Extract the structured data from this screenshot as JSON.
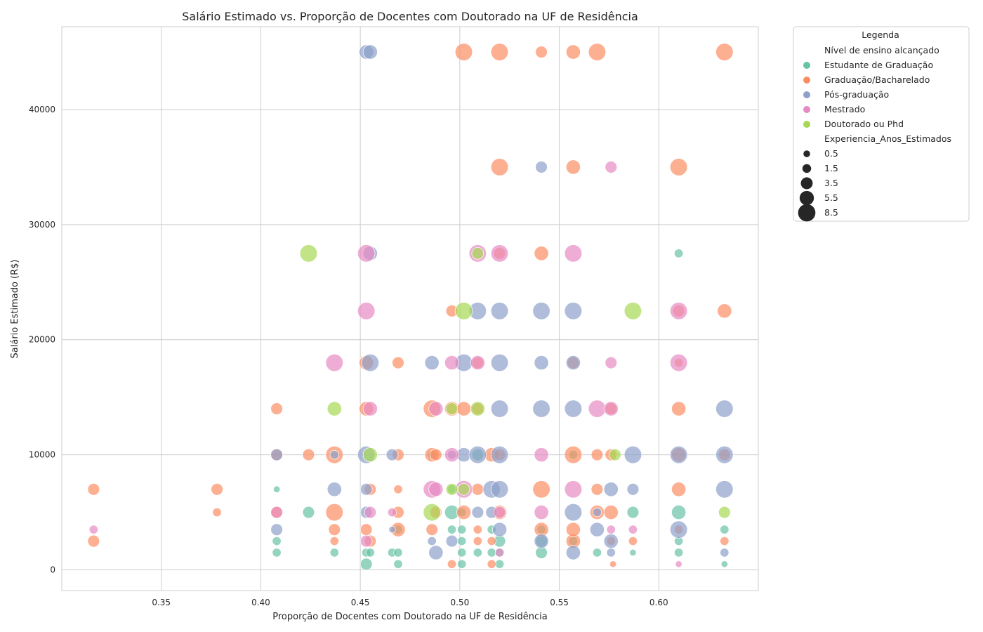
{
  "chart_data": {
    "type": "scatter",
    "title": "Salário Estimado vs. Proporção de Docentes com Doutorado na UF de Residência",
    "xlabel": "Proporção de Docentes com Doutorado na UF de Residência",
    "ylabel": "Salário Estimado (R$)",
    "xlim": [
      0.3,
      0.65
    ],
    "ylim": [
      -1800,
      47200
    ],
    "xticks": [
      0.35,
      0.4,
      0.45,
      0.5,
      0.55,
      0.6
    ],
    "xtick_labels": [
      "0.35",
      "0.40",
      "0.45",
      "0.50",
      "0.55",
      "0.60"
    ],
    "yticks": [
      0,
      10000,
      20000,
      30000,
      40000
    ],
    "ytick_labels": [
      "0",
      "10000",
      "20000",
      "30000",
      "40000"
    ],
    "grid": true,
    "legend": {
      "title": "Legenda",
      "placement": "outside-top-right",
      "hue_title": "Nível de ensino alcançado",
      "size_title": "Experiencia_Anos_Estimados",
      "hue_entries": [
        {
          "label": "Estudante de Graduação",
          "color": "#66c2a5"
        },
        {
          "label": "Graduação/Bacharelado",
          "color": "#fc8d62"
        },
        {
          "label": "Pós-graduação",
          "color": "#8da0cb"
        },
        {
          "label": "Mestrado",
          "color": "#e78ac3"
        },
        {
          "label": "Doutorado ou Phd",
          "color": "#a6d854"
        }
      ],
      "size_entries": [
        {
          "label": "0.5",
          "value": 0.5
        },
        {
          "label": "1.5",
          "value": 1.5
        },
        {
          "label": "3.5",
          "value": 3.5
        },
        {
          "label": "5.5",
          "value": 5.5
        },
        {
          "label": "8.5",
          "value": 8.5
        }
      ]
    },
    "series": [
      {
        "name": "Estudante de Graduação",
        "color": "#66c2a5",
        "points": [
          [
            0.408,
            1500,
            1.5
          ],
          [
            0.408,
            2500,
            1.5
          ],
          [
            0.408,
            7000,
            0.5
          ],
          [
            0.424,
            5000,
            3.5
          ],
          [
            0.437,
            1500,
            1.5
          ],
          [
            0.453,
            500,
            3.5
          ],
          [
            0.453,
            1500,
            1.5
          ],
          [
            0.455,
            1500,
            1.5
          ],
          [
            0.466,
            1500,
            1.5
          ],
          [
            0.469,
            500,
            1.5
          ],
          [
            0.469,
            1500,
            1.5
          ],
          [
            0.469,
            3500,
            1.5
          ],
          [
            0.486,
            10000,
            1.5
          ],
          [
            0.496,
            3500,
            1.5
          ],
          [
            0.496,
            5000,
            5.5
          ],
          [
            0.496,
            7000,
            1.5
          ],
          [
            0.501,
            500,
            1.5
          ],
          [
            0.501,
            1500,
            1.5
          ],
          [
            0.501,
            2500,
            1.5
          ],
          [
            0.501,
            3500,
            1.5
          ],
          [
            0.501,
            5000,
            1.5
          ],
          [
            0.509,
            1500,
            1.5
          ],
          [
            0.509,
            10000,
            3.5
          ],
          [
            0.516,
            1500,
            1.5
          ],
          [
            0.516,
            3500,
            1.5
          ],
          [
            0.52,
            500,
            1.5
          ],
          [
            0.52,
            1500,
            1.5
          ],
          [
            0.52,
            2500,
            3.5
          ],
          [
            0.541,
            1500,
            3.5
          ],
          [
            0.541,
            2500,
            3.5
          ],
          [
            0.541,
            3500,
            1.5
          ],
          [
            0.557,
            2500,
            1.5
          ],
          [
            0.557,
            10000,
            1.5
          ],
          [
            0.569,
            1500,
            1.5
          ],
          [
            0.587,
            1500,
            0.5
          ],
          [
            0.587,
            5000,
            3.5
          ],
          [
            0.61,
            1500,
            1.5
          ],
          [
            0.61,
            2500,
            1.5
          ],
          [
            0.61,
            5000,
            5.5
          ],
          [
            0.61,
            27500,
            1.5
          ],
          [
            0.633,
            3500,
            1.5
          ],
          [
            0.633,
            500,
            0.5
          ]
        ]
      },
      {
        "name": "Graduação/Bacharelado",
        "color": "#fc8d62",
        "points": [
          [
            0.316,
            2500,
            3.5
          ],
          [
            0.316,
            7000,
            3.5
          ],
          [
            0.378,
            5000,
            1.5
          ],
          [
            0.378,
            7000,
            3.5
          ],
          [
            0.408,
            5000,
            3.5
          ],
          [
            0.408,
            10000,
            3.5
          ],
          [
            0.408,
            14000,
            3.5
          ],
          [
            0.424,
            10000,
            3.5
          ],
          [
            0.437,
            2500,
            1.5
          ],
          [
            0.437,
            3500,
            3.5
          ],
          [
            0.437,
            5000,
            8.5
          ],
          [
            0.437,
            10000,
            8.5
          ],
          [
            0.453,
            3500,
            3.5
          ],
          [
            0.453,
            14000,
            5.5
          ],
          [
            0.453,
            18000,
            5.5
          ],
          [
            0.455,
            2500,
            3.5
          ],
          [
            0.455,
            7000,
            3.5
          ],
          [
            0.469,
            5000,
            3.5
          ],
          [
            0.469,
            7000,
            1.5
          ],
          [
            0.469,
            10000,
            3.5
          ],
          [
            0.469,
            18000,
            3.5
          ],
          [
            0.469,
            3500,
            5.5
          ],
          [
            0.486,
            3500,
            3.5
          ],
          [
            0.486,
            10000,
            5.5
          ],
          [
            0.486,
            14000,
            8.5
          ],
          [
            0.488,
            5000,
            3.5
          ],
          [
            0.488,
            10000,
            3.5
          ],
          [
            0.496,
            500,
            1.5
          ],
          [
            0.496,
            14000,
            5.5
          ],
          [
            0.496,
            22500,
            3.5
          ],
          [
            0.502,
            45000,
            8.5
          ],
          [
            0.502,
            5000,
            5.5
          ],
          [
            0.502,
            14000,
            5.5
          ],
          [
            0.509,
            2500,
            1.5
          ],
          [
            0.509,
            3500,
            1.5
          ],
          [
            0.509,
            7000,
            3.5
          ],
          [
            0.509,
            14000,
            3.5
          ],
          [
            0.509,
            18000,
            3.5
          ],
          [
            0.516,
            500,
            1.5
          ],
          [
            0.516,
            2500,
            1.5
          ],
          [
            0.516,
            10000,
            5.5
          ],
          [
            0.52,
            5000,
            5.5
          ],
          [
            0.52,
            10000,
            3.5
          ],
          [
            0.52,
            27500,
            3.5
          ],
          [
            0.52,
            35000,
            8.5
          ],
          [
            0.52,
            45000,
            8.5
          ],
          [
            0.541,
            3500,
            5.5
          ],
          [
            0.541,
            7000,
            8.5
          ],
          [
            0.541,
            27500,
            5.5
          ],
          [
            0.541,
            45000,
            3.5
          ],
          [
            0.557,
            2500,
            5.5
          ],
          [
            0.557,
            3500,
            5.5
          ],
          [
            0.557,
            10000,
            8.5
          ],
          [
            0.557,
            18000,
            3.5
          ],
          [
            0.557,
            35000,
            5.5
          ],
          [
            0.557,
            45000,
            5.5
          ],
          [
            0.569,
            5000,
            5.5
          ],
          [
            0.569,
            7000,
            3.5
          ],
          [
            0.569,
            10000,
            3.5
          ],
          [
            0.569,
            45000,
            8.5
          ],
          [
            0.576,
            2500,
            1.5
          ],
          [
            0.576,
            5000,
            5.5
          ],
          [
            0.576,
            10000,
            3.5
          ],
          [
            0.576,
            14000,
            3.5
          ],
          [
            0.577,
            500,
            0.5
          ],
          [
            0.587,
            2500,
            1.5
          ],
          [
            0.61,
            3500,
            1.5
          ],
          [
            0.61,
            7000,
            5.5
          ],
          [
            0.61,
            10000,
            5.5
          ],
          [
            0.61,
            14000,
            5.5
          ],
          [
            0.61,
            18000,
            1.5
          ],
          [
            0.61,
            22500,
            3.5
          ],
          [
            0.61,
            35000,
            8.5
          ],
          [
            0.633,
            2500,
            1.5
          ],
          [
            0.633,
            10000,
            3.5
          ],
          [
            0.633,
            22500,
            5.5
          ],
          [
            0.633,
            45000,
            8.5
          ]
        ]
      },
      {
        "name": "Pós-graduação",
        "color": "#8da0cb",
        "points": [
          [
            0.408,
            3500,
            3.5
          ],
          [
            0.408,
            10000,
            3.5
          ],
          [
            0.437,
            7000,
            5.5
          ],
          [
            0.437,
            10000,
            1.5
          ],
          [
            0.453,
            5000,
            3.5
          ],
          [
            0.453,
            7000,
            3.5
          ],
          [
            0.453,
            10000,
            8.5
          ],
          [
            0.453,
            45000,
            5.5
          ],
          [
            0.455,
            18000,
            8.5
          ],
          [
            0.455,
            27500,
            5.5
          ],
          [
            0.455,
            45000,
            5.5
          ],
          [
            0.466,
            3500,
            0.5
          ],
          [
            0.466,
            10000,
            3.5
          ],
          [
            0.486,
            2500,
            1.5
          ],
          [
            0.486,
            18000,
            5.5
          ],
          [
            0.488,
            1500,
            5.5
          ],
          [
            0.496,
            2500,
            3.5
          ],
          [
            0.496,
            10000,
            1.5
          ],
          [
            0.502,
            10000,
            5.5
          ],
          [
            0.502,
            18000,
            8.5
          ],
          [
            0.509,
            5000,
            3.5
          ],
          [
            0.509,
            10000,
            8.5
          ],
          [
            0.509,
            22500,
            8.5
          ],
          [
            0.516,
            5000,
            3.5
          ],
          [
            0.516,
            7000,
            8.5
          ],
          [
            0.52,
            3500,
            5.5
          ],
          [
            0.52,
            7000,
            8.5
          ],
          [
            0.52,
            10000,
            8.5
          ],
          [
            0.52,
            14000,
            8.5
          ],
          [
            0.52,
            18000,
            8.5
          ],
          [
            0.52,
            22500,
            8.5
          ],
          [
            0.541,
            2500,
            5.5
          ],
          [
            0.541,
            14000,
            8.5
          ],
          [
            0.541,
            18000,
            5.5
          ],
          [
            0.541,
            22500,
            8.5
          ],
          [
            0.541,
            35000,
            3.5
          ],
          [
            0.557,
            1500,
            5.5
          ],
          [
            0.557,
            5000,
            8.5
          ],
          [
            0.557,
            14000,
            8.5
          ],
          [
            0.557,
            18000,
            5.5
          ],
          [
            0.557,
            22500,
            8.5
          ],
          [
            0.569,
            3500,
            5.5
          ],
          [
            0.569,
            5000,
            1.5
          ],
          [
            0.576,
            1500,
            1.5
          ],
          [
            0.576,
            2500,
            5.5
          ],
          [
            0.576,
            7000,
            5.5
          ],
          [
            0.587,
            7000,
            3.5
          ],
          [
            0.587,
            10000,
            8.5
          ],
          [
            0.61,
            3500,
            8.5
          ],
          [
            0.61,
            10000,
            8.5
          ],
          [
            0.633,
            1500,
            1.5
          ],
          [
            0.633,
            7000,
            8.5
          ],
          [
            0.633,
            10000,
            8.5
          ],
          [
            0.633,
            14000,
            8.5
          ]
        ]
      },
      {
        "name": "Mestrado",
        "color": "#e78ac3",
        "points": [
          [
            0.316,
            3500,
            1.5
          ],
          [
            0.408,
            5000,
            3.5
          ],
          [
            0.437,
            18000,
            8.5
          ],
          [
            0.453,
            2500,
            3.5
          ],
          [
            0.453,
            22500,
            8.5
          ],
          [
            0.453,
            27500,
            8.5
          ],
          [
            0.455,
            5000,
            3.5
          ],
          [
            0.455,
            14000,
            5.5
          ],
          [
            0.466,
            5000,
            1.5
          ],
          [
            0.486,
            7000,
            8.5
          ],
          [
            0.488,
            7000,
            5.5
          ],
          [
            0.488,
            14000,
            5.5
          ],
          [
            0.496,
            10000,
            5.5
          ],
          [
            0.496,
            18000,
            5.5
          ],
          [
            0.502,
            7000,
            8.5
          ],
          [
            0.509,
            18000,
            5.5
          ],
          [
            0.509,
            27500,
            8.5
          ],
          [
            0.52,
            1500,
            1.5
          ],
          [
            0.52,
            5000,
            3.5
          ],
          [
            0.52,
            27500,
            8.5
          ],
          [
            0.541,
            5000,
            5.5
          ],
          [
            0.541,
            10000,
            5.5
          ],
          [
            0.557,
            7000,
            8.5
          ],
          [
            0.557,
            27500,
            8.5
          ],
          [
            0.569,
            14000,
            8.5
          ],
          [
            0.576,
            3500,
            1.5
          ],
          [
            0.576,
            14000,
            5.5
          ],
          [
            0.576,
            18000,
            3.5
          ],
          [
            0.576,
            35000,
            3.5
          ],
          [
            0.587,
            3500,
            1.5
          ],
          [
            0.61,
            500,
            0.5
          ],
          [
            0.61,
            18000,
            8.5
          ],
          [
            0.61,
            22500,
            8.5
          ]
        ]
      },
      {
        "name": "Doutorado ou Phd",
        "color": "#a6d854",
        "points": [
          [
            0.424,
            27500,
            8.5
          ],
          [
            0.437,
            14000,
            5.5
          ],
          [
            0.455,
            10000,
            5.5
          ],
          [
            0.486,
            5000,
            8.5
          ],
          [
            0.496,
            14000,
            3.5
          ],
          [
            0.496,
            7000,
            3.5
          ],
          [
            0.502,
            7000,
            3.5
          ],
          [
            0.502,
            22500,
            8.5
          ],
          [
            0.509,
            14000,
            5.5
          ],
          [
            0.509,
            27500,
            3.5
          ],
          [
            0.578,
            10000,
            3.5
          ],
          [
            0.587,
            22500,
            8.5
          ],
          [
            0.633,
            5000,
            3.5
          ]
        ]
      }
    ]
  }
}
